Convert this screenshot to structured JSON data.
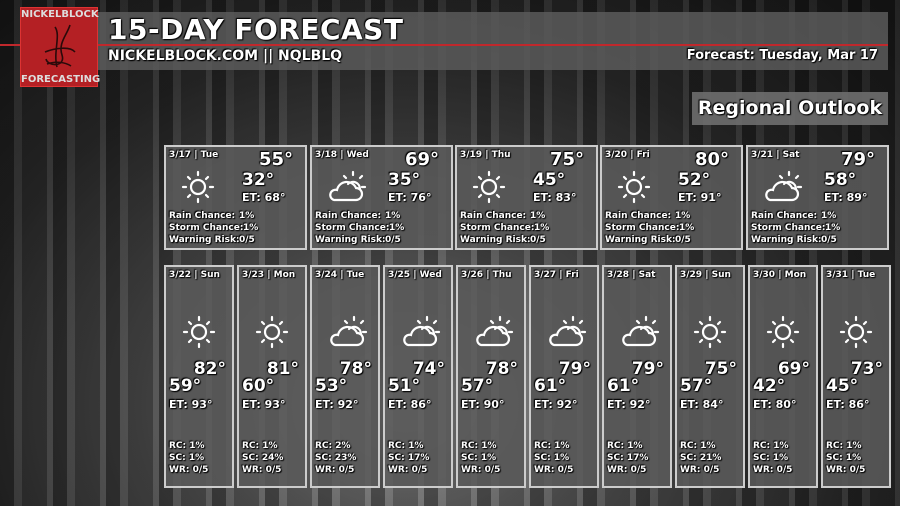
{
  "logo": {
    "top": "NICKELBLOCK",
    "bottom": "FORECASTING"
  },
  "header": {
    "title": "15-DAY FORECAST",
    "subtitle": "NICKELBLOCK.COM || NQLBLQ",
    "forecast_date": "Forecast: Tuesday, Mar 17"
  },
  "region_label": "Regional Outlook",
  "labels": {
    "rain": "Rain Chance:",
    "storm": "Storm Chance:",
    "warning": "Warning Risk:"
  },
  "top_days": [
    {
      "date": "3/17 | Tue",
      "icon": "sun-icon",
      "hi": "55°",
      "lo": "32°",
      "et": "ET: 68°",
      "rain": "1%",
      "storm": "1%",
      "warning": "0/5"
    },
    {
      "date": "3/18 | Wed",
      "icon": "partly-cloudy-icon",
      "hi": "69°",
      "lo": "35°",
      "et": "ET: 76°",
      "rain": "1%",
      "storm": "1%",
      "warning": "0/5"
    },
    {
      "date": "3/19 | Thu",
      "icon": "sun-icon",
      "hi": "75°",
      "lo": "45°",
      "et": "ET: 83°",
      "rain": "1%",
      "storm": "1%",
      "warning": "0/5"
    },
    {
      "date": "3/20 | Fri",
      "icon": "sun-icon",
      "hi": "80°",
      "lo": "52°",
      "et": "ET: 91°",
      "rain": "1%",
      "storm": "1%",
      "warning": "0/5"
    },
    {
      "date": "3/21 | Sat",
      "icon": "partly-cloudy-icon",
      "hi": "79°",
      "lo": "58°",
      "et": "ET: 89°",
      "rain": "1%",
      "storm": "1%",
      "warning": "0/5"
    }
  ],
  "bottom_days": [
    {
      "date": "3/22 | Sun",
      "icon": "sun-icon",
      "hi": "82°",
      "lo": "59°",
      "et": "ET: 93°",
      "rc": "RC: 1%",
      "sc": "SC: 1%",
      "wr": "WR: 0/5"
    },
    {
      "date": "3/23 | Mon",
      "icon": "sun-icon",
      "hi": "81°",
      "lo": "60°",
      "et": "ET: 93°",
      "rc": "RC: 1%",
      "sc": "SC: 24%",
      "wr": "WR: 0/5"
    },
    {
      "date": "3/24 | Tue",
      "icon": "partly-cloudy-icon",
      "hi": "78°",
      "lo": "53°",
      "et": "ET: 92°",
      "rc": "RC: 2%",
      "sc": "SC: 23%",
      "wr": "WR: 0/5"
    },
    {
      "date": "3/25 | Wed",
      "icon": "partly-cloudy-icon",
      "hi": "74°",
      "lo": "51°",
      "et": "ET: 86°",
      "rc": "RC: 1%",
      "sc": "SC: 17%",
      "wr": "WR: 0/5"
    },
    {
      "date": "3/26 | Thu",
      "icon": "partly-cloudy-icon",
      "hi": "78°",
      "lo": "57°",
      "et": "ET: 90°",
      "rc": "RC: 1%",
      "sc": "SC: 1%",
      "wr": "WR: 0/5"
    },
    {
      "date": "3/27 | Fri",
      "icon": "partly-cloudy-icon",
      "hi": "79°",
      "lo": "61°",
      "et": "ET: 92°",
      "rc": "RC: 1%",
      "sc": "SC: 1%",
      "wr": "WR: 0/5"
    },
    {
      "date": "3/28 | Sat",
      "icon": "partly-cloudy-icon",
      "hi": "79°",
      "lo": "61°",
      "et": "ET: 92°",
      "rc": "RC: 1%",
      "sc": "SC: 17%",
      "wr": "WR: 0/5"
    },
    {
      "date": "3/29 | Sun",
      "icon": "sun-icon",
      "hi": "75°",
      "lo": "57°",
      "et": "ET: 84°",
      "rc": "RC: 1%",
      "sc": "SC: 21%",
      "wr": "WR: 0/5"
    },
    {
      "date": "3/30 | Mon",
      "icon": "sun-icon",
      "hi": "69°",
      "lo": "42°",
      "et": "ET: 80°",
      "rc": "RC: 1%",
      "sc": "SC: 1%",
      "wr": "WR: 0/5"
    },
    {
      "date": "3/31 | Tue",
      "icon": "sun-icon",
      "hi": "73°",
      "lo": "45°",
      "et": "ET: 86°",
      "rc": "RC: 1%",
      "sc": "SC: 1%",
      "wr": "WR: 0/5"
    }
  ],
  "colors": {
    "accent_red": "#c0282c",
    "panel": "#5a5a5a"
  }
}
